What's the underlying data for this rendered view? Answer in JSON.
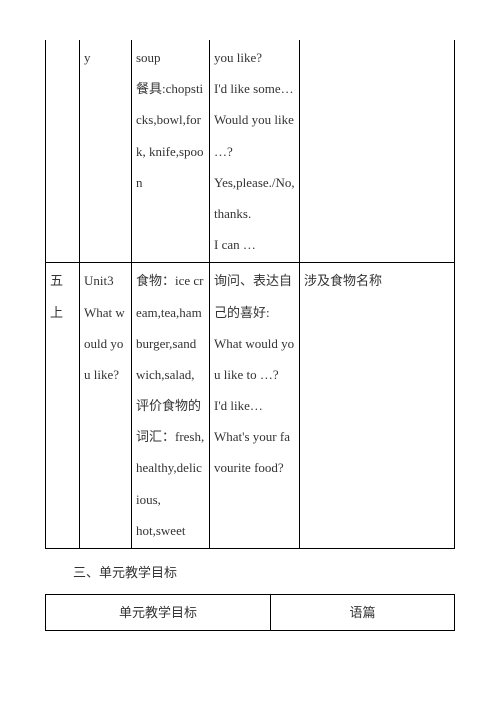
{
  "row1": {
    "c1": "",
    "c2": "y",
    "c3": "soup\n餐具:chopsticks,bowl,fork, knife,spoon",
    "c4": "you like?\nI'd like some…\nWould you like …?\nYes,please./No,thanks.\nI can …",
    "c5": ""
  },
  "row2": {
    "c1": "五上",
    "c2": "Unit3 What would you like?",
    "c3": "食物：ice cream,tea,hamburger,sandwich,salad,\n评价食物的词汇：fresh,healthy,delicious,\nhot,sweet",
    "c4": "询问、表达自己的喜好:\nWhat would you like to …?\nI'd like…\nWhat's your favourite food?",
    "c5": "涉及食物名称"
  },
  "heading": "三、单元教学目标",
  "sub": {
    "h1": "单元教学目标",
    "h2": "语篇"
  }
}
